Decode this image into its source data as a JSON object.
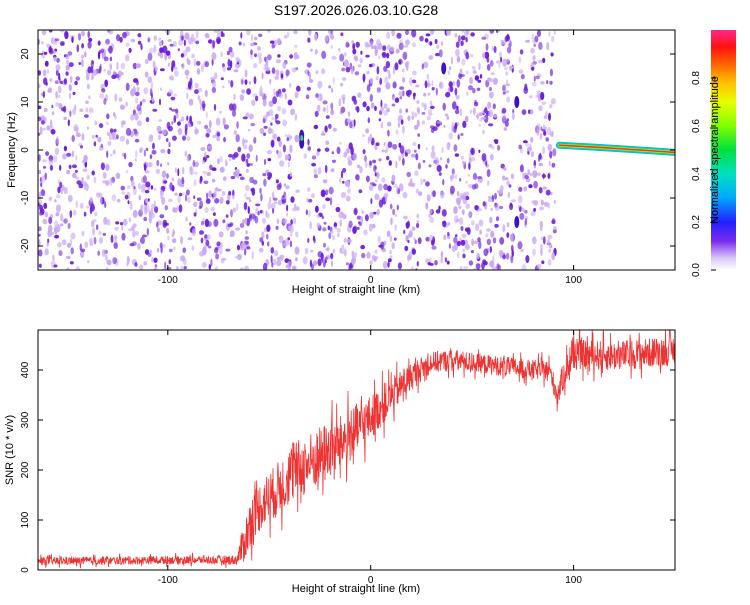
{
  "title": "S197.2026.026.03.10.G28",
  "colors": {
    "dot": "#6a1bd8",
    "dot_light": "#c9a8f2",
    "snr_line": "#ee3333",
    "axis": "#000000"
  },
  "chart_data": [
    {
      "type": "heatmap",
      "xlabel": "Height of straight line (km)",
      "ylabel": "Frequency (Hz)",
      "xlim": [
        -164,
        150
      ],
      "ylim": [
        -25,
        25
      ],
      "x_ticks": [
        -100,
        0,
        100
      ],
      "x_tick_labels": [
        "-100",
        "0",
        "100"
      ],
      "y_ticks": [
        -20,
        -10,
        0,
        10,
        20
      ],
      "y_tick_labels": [
        "-20",
        "-10",
        "0",
        "10",
        "20"
      ],
      "data_extent_x": [
        -164,
        91
      ],
      "gaps_x": [
        -34,
        72
      ],
      "colorbar": {
        "label": "Normalized spectral amplitude",
        "range": [
          0,
          1
        ],
        "ticks": [
          0,
          0.2,
          0.4,
          0.6,
          0.8
        ],
        "tick_labels": [
          "0.0",
          "0.2",
          "0.4",
          "0.6",
          "0.8"
        ]
      },
      "signal_band": [
        {
          "x": 93,
          "y": 1.0
        },
        {
          "x": 110,
          "y": 0.6
        },
        {
          "x": 125,
          "y": 0.2
        },
        {
          "x": 140,
          "y": -0.2
        },
        {
          "x": 150,
          "y": -0.5
        }
      ],
      "grid": false
    },
    {
      "type": "line",
      "xlabel": "Height of straight line (km)",
      "ylabel": "SNR (10 * v/v)",
      "xlim": [
        -164,
        150
      ],
      "ylim": [
        0,
        480
      ],
      "x_ticks": [
        -100,
        0,
        100
      ],
      "x_tick_labels": [
        "-100",
        "0",
        "100"
      ],
      "y_ticks": [
        0,
        100,
        200,
        300,
        400
      ],
      "y_tick_labels": [
        "0",
        "100",
        "200",
        "300",
        "400"
      ],
      "series": [
        {
          "x": [
            -164,
            -140,
            -120,
            -100,
            -80,
            -66,
            -62,
            -58,
            -52,
            -46,
            -40,
            -34,
            -28,
            -22,
            -16,
            -10,
            -4,
            0,
            6,
            12,
            18,
            24,
            30,
            40,
            50,
            60,
            70,
            80,
            88,
            92,
            96,
            100,
            110,
            120,
            130,
            140,
            150
          ],
          "y": [
            18,
            18,
            19,
            20,
            20,
            20,
            60,
            110,
            140,
            160,
            190,
            205,
            220,
            235,
            250,
            270,
            290,
            305,
            330,
            355,
            380,
            400,
            415,
            420,
            415,
            410,
            405,
            400,
            400,
            350,
            400,
            430,
            430,
            428,
            432,
            435,
            440
          ],
          "noise": [
            8,
            8,
            8,
            8,
            8,
            10,
            45,
            50,
            50,
            55,
            60,
            60,
            60,
            60,
            55,
            55,
            50,
            45,
            40,
            35,
            30,
            25,
            22,
            22,
            20,
            20,
            20,
            20,
            20,
            25,
            30,
            30,
            30,
            30,
            30,
            30,
            30
          ]
        }
      ],
      "grid": false
    }
  ]
}
